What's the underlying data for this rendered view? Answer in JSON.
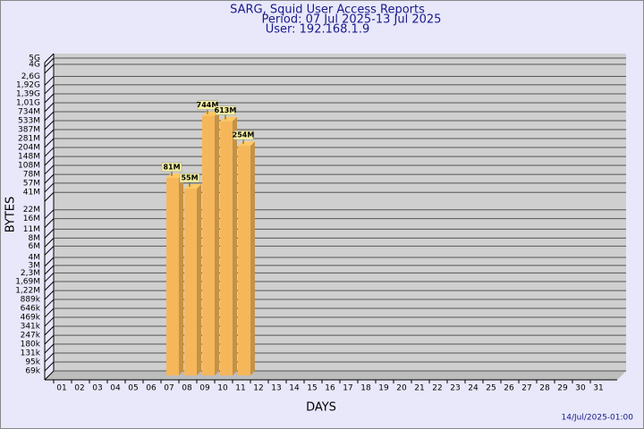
{
  "chart_data": {
    "type": "bar3d",
    "title": "SARG, Squid User Access Reports",
    "subtitle": "Period: 07 Jul 2025-13 Jul 2025",
    "user": "User: 192.168.1.9",
    "x_label": "DAYS",
    "y_label": "BYTES",
    "footer": "14/Jul/2025-01:00",
    "categories": [
      "01",
      "02",
      "03",
      "04",
      "05",
      "06",
      "07",
      "08",
      "09",
      "10",
      "11",
      "12",
      "13",
      "14",
      "15",
      "16",
      "17",
      "18",
      "19",
      "20",
      "21",
      "22",
      "23",
      "24",
      "25",
      "26",
      "27",
      "28",
      "29",
      "30",
      "31"
    ],
    "values": [
      null,
      null,
      null,
      null,
      null,
      null,
      81000000,
      55000000,
      744000000,
      613000000,
      254000000,
      null,
      null,
      null,
      null,
      null,
      null,
      null,
      null,
      null,
      null,
      null,
      null,
      null,
      null,
      null,
      null,
      null,
      null,
      null,
      null
    ],
    "value_labels": [
      null,
      null,
      null,
      null,
      null,
      null,
      "81M",
      "55M",
      "744M",
      "613M",
      "254M",
      null,
      null,
      null,
      null,
      null,
      null,
      null,
      null,
      null,
      null,
      null,
      null,
      null,
      null,
      null,
      null,
      null,
      null,
      null,
      null
    ],
    "color": "#f5b75a",
    "log_scale": true,
    "grid": true,
    "ylim": [
      69000,
      5000000000
    ],
    "yticks": [
      {
        "value": 5000000000,
        "label": "5G"
      },
      {
        "value": 4000000000,
        "label": "4G"
      },
      {
        "value": 2600000000,
        "label": "2,6G"
      },
      {
        "value": 1920000000,
        "label": "1,92G"
      },
      {
        "value": 1390000000,
        "label": "1,39G"
      },
      {
        "value": 1010000000,
        "label": "1,01G"
      },
      {
        "value": 734000000,
        "label": "734M"
      },
      {
        "value": 533000000,
        "label": "533M"
      },
      {
        "value": 387000000,
        "label": "387M"
      },
      {
        "value": 281000000,
        "label": "281M"
      },
      {
        "value": 204000000,
        "label": "204M"
      },
      {
        "value": 148000000,
        "label": "148M"
      },
      {
        "value": 108000000,
        "label": "108M"
      },
      {
        "value": 78000000,
        "label": "78M"
      },
      {
        "value": 57000000,
        "label": "57M"
      },
      {
        "value": 41000000,
        "label": "41M"
      },
      {
        "value": 22000000,
        "label": "22M"
      },
      {
        "value": 16000000,
        "label": "16M"
      },
      {
        "value": 11000000,
        "label": "11M"
      },
      {
        "value": 8000000,
        "label": "8M"
      },
      {
        "value": 6000000,
        "label": "6M"
      },
      {
        "value": 4000000,
        "label": "4M"
      },
      {
        "value": 3000000,
        "label": "3M"
      },
      {
        "value": 2300000,
        "label": "2,3M"
      },
      {
        "value": 1690000,
        "label": "1,69M"
      },
      {
        "value": 1220000,
        "label": "1,22M"
      },
      {
        "value": 889000,
        "label": "889k"
      },
      {
        "value": 646000,
        "label": "646k"
      },
      {
        "value": 469000,
        "label": "469k"
      },
      {
        "value": 341000,
        "label": "341k"
      },
      {
        "value": 247000,
        "label": "247k"
      },
      {
        "value": 180000,
        "label": "180k"
      },
      {
        "value": 131000,
        "label": "131k"
      },
      {
        "value": 95000,
        "label": "95k"
      },
      {
        "value": 69000,
        "label": "69k"
      }
    ]
  }
}
